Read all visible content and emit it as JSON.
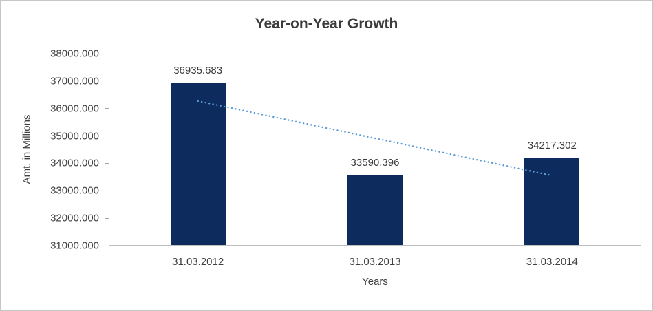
{
  "chart_data": {
    "type": "bar",
    "title": "Year-on-Year Growth",
    "xlabel": "Years",
    "ylabel": "Amt. in Millions",
    "categories": [
      "31.03.2012",
      "31.03.2013",
      "31.03.2014"
    ],
    "values": [
      36935.683,
      33590.396,
      34217.302
    ],
    "data_labels": [
      "36935.683",
      "33590.396",
      "34217.302"
    ],
    "ylim": [
      31000,
      38000
    ],
    "ytick_step": 1000,
    "ytick_labels": [
      "31000.000",
      "32000.000",
      "33000.000",
      "34000.000",
      "35000.000",
      "36000.000",
      "37000.000",
      "38000.000"
    ],
    "grid": false,
    "legend": false,
    "bar_color": "#0e2b5d",
    "trendline": {
      "type": "linear",
      "style": "dotted",
      "color": "#5b9bd5",
      "values": [
        36273.654,
        34914.46,
        33555.267
      ]
    }
  }
}
